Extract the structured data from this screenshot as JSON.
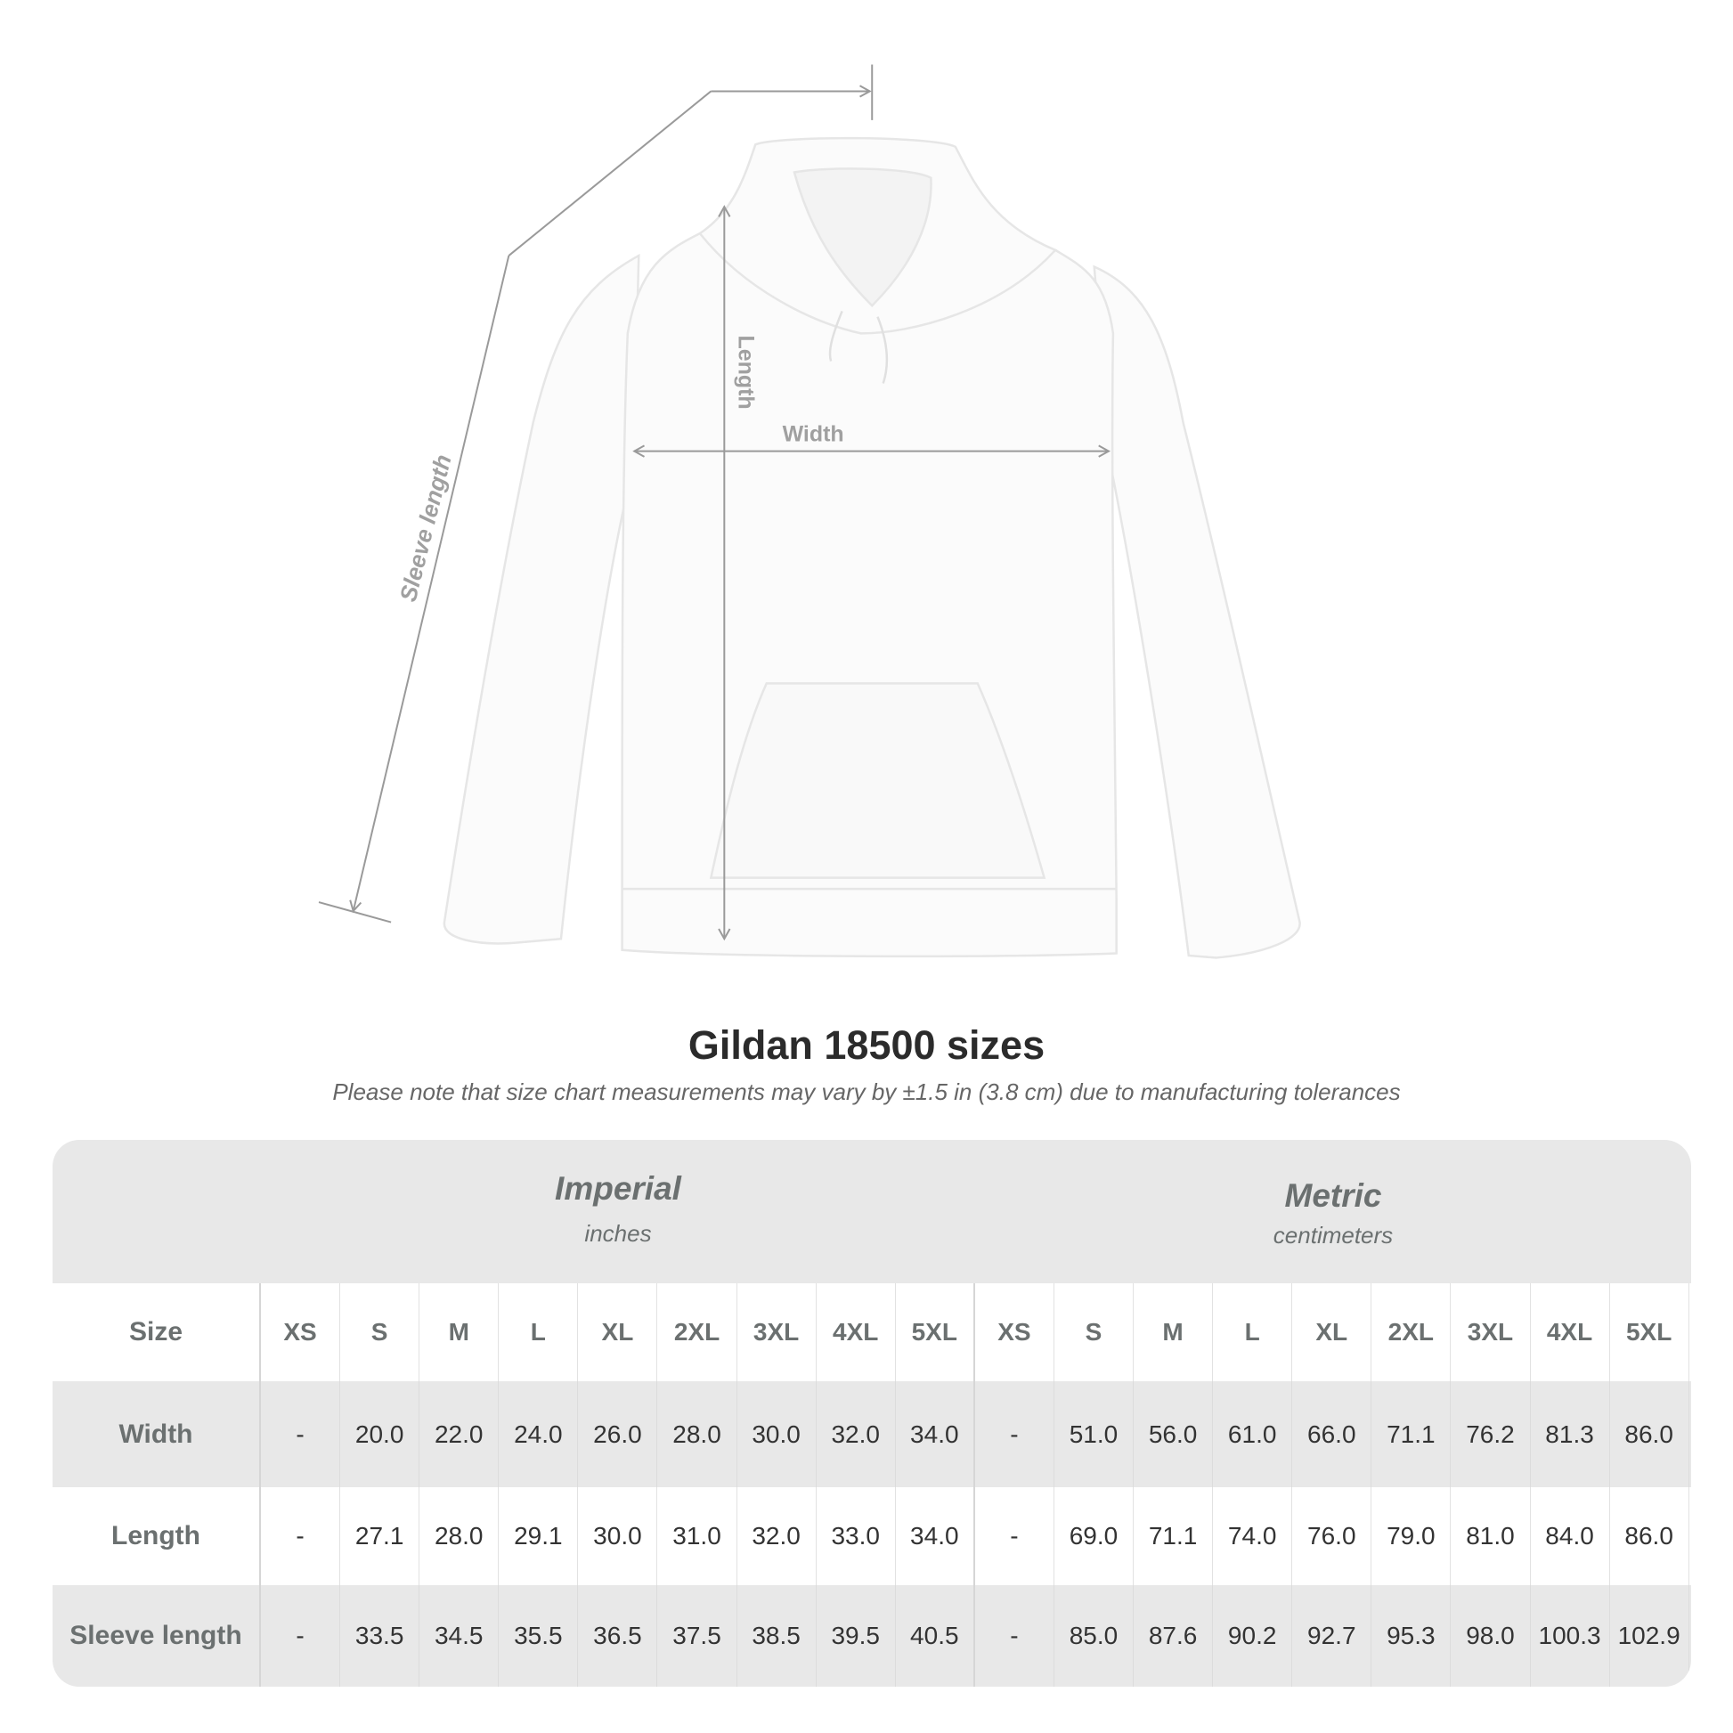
{
  "diagram": {
    "labels": {
      "sleeve": "Sleeve length",
      "length": "Length",
      "width": "Width"
    }
  },
  "header": {
    "title": "Gildan 18500 sizes",
    "subtitle": "Please note that size chart measurements may vary by ±1.5 in (3.8 cm) due to manufacturing tolerances"
  },
  "table": {
    "imperial": {
      "name": "Imperial",
      "unit": "inches"
    },
    "metric": {
      "name": "Metric",
      "unit": "centimeters"
    },
    "size_label": "Size",
    "sizes": [
      "XS",
      "S",
      "M",
      "L",
      "XL",
      "2XL",
      "3XL",
      "4XL",
      "5XL"
    ],
    "rows": [
      {
        "label": "Width",
        "imperial": [
          "-",
          "20.0",
          "22.0",
          "24.0",
          "26.0",
          "28.0",
          "30.0",
          "32.0",
          "34.0"
        ],
        "metric": [
          "-",
          "51.0",
          "56.0",
          "61.0",
          "66.0",
          "71.1",
          "76.2",
          "81.3",
          "86.0"
        ]
      },
      {
        "label": "Length",
        "imperial": [
          "-",
          "27.1",
          "28.0",
          "29.1",
          "30.0",
          "31.0",
          "32.0",
          "33.0",
          "34.0"
        ],
        "metric": [
          "-",
          "69.0",
          "71.1",
          "74.0",
          "76.0",
          "79.0",
          "81.0",
          "84.0",
          "86.0"
        ]
      },
      {
        "label": "Sleeve length",
        "imperial": [
          "-",
          "33.5",
          "34.5",
          "35.5",
          "36.5",
          "37.5",
          "38.5",
          "39.5",
          "40.5"
        ],
        "metric": [
          "-",
          "85.0",
          "87.6",
          "90.2",
          "92.7",
          "95.3",
          "98.0",
          "100.3",
          "102.9"
        ]
      }
    ]
  }
}
